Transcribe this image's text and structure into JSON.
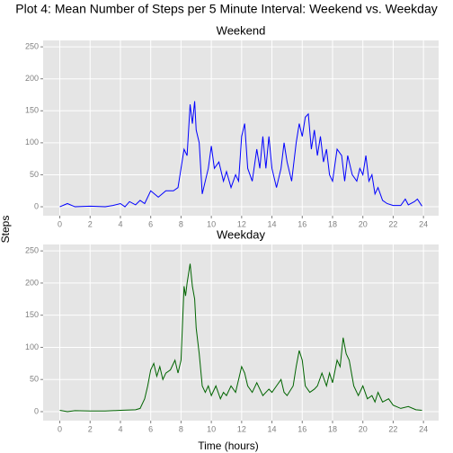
{
  "chart_data": {
    "type": "line",
    "title": "Plot 4: Mean Number of Steps per 5 Minute Interval: Weekend vs. Weekday",
    "x_label": "Time (hours)",
    "y_label": "Steps",
    "xlim": [
      -1.1,
      25.0
    ],
    "ylim": [
      -14,
      260
    ],
    "xticks": [
      0,
      2,
      4,
      6,
      8,
      10,
      12,
      14,
      16,
      18,
      20,
      22,
      24
    ],
    "yticks": [
      0,
      50,
      100,
      150,
      200,
      250
    ],
    "grid": true,
    "panels": [
      {
        "title": "Weekend",
        "series": [
          {
            "color": "#0000ff",
            "x": [
              0,
              0.5,
              1,
              2,
              3,
              3.5,
              4,
              4.3,
              4.6,
              5,
              5.3,
              5.6,
              6,
              6.5,
              7,
              7.5,
              7.8,
              8,
              8.2,
              8.4,
              8.6,
              8.75,
              8.9,
              9.0,
              9.2,
              9.4,
              9.6,
              9.8,
              10,
              10.2,
              10.5,
              10.8,
              11,
              11.3,
              11.6,
              11.8,
              12,
              12.2,
              12.4,
              12.7,
              13,
              13.2,
              13.4,
              13.6,
              13.8,
              14,
              14.3,
              14.6,
              14.8,
              15,
              15.3,
              15.6,
              15.8,
              16,
              16.2,
              16.4,
              16.6,
              16.8,
              17,
              17.2,
              17.4,
              17.6,
              17.8,
              18,
              18.3,
              18.6,
              18.8,
              19,
              19.3,
              19.6,
              19.8,
              20,
              20.2,
              20.4,
              20.6,
              20.8,
              21,
              21.3,
              21.6,
              22,
              22.5,
              22.8,
              23,
              23.4,
              23.6,
              23.9
            ],
            "values": [
              0,
              5,
              0,
              1,
              0,
              2,
              5,
              0,
              8,
              3,
              10,
              5,
              25,
              15,
              25,
              25,
              30,
              60,
              90,
              80,
              160,
              130,
              165,
              120,
              100,
              20,
              40,
              60,
              95,
              60,
              70,
              40,
              55,
              30,
              50,
              40,
              110,
              130,
              60,
              40,
              90,
              60,
              110,
              60,
              110,
              60,
              30,
              60,
              100,
              70,
              40,
              100,
              130,
              110,
              140,
              145,
              90,
              120,
              80,
              110,
              70,
              90,
              50,
              40,
              90,
              80,
              40,
              80,
              50,
              40,
              60,
              50,
              80,
              40,
              50,
              20,
              30,
              10,
              5,
              2,
              2,
              12,
              3,
              8,
              12,
              1
            ]
          }
        ]
      },
      {
        "title": "Weekday",
        "series": [
          {
            "color": "#006400",
            "x": [
              0,
              0.5,
              1,
              2,
              3,
              4,
              5,
              5.3,
              5.6,
              5.8,
              6,
              6.2,
              6.4,
              6.6,
              6.8,
              7,
              7.3,
              7.6,
              7.8,
              8,
              8.2,
              8.3,
              8.4,
              8.6,
              8.75,
              8.9,
              9.0,
              9.2,
              9.4,
              9.6,
              9.8,
              10,
              10.3,
              10.6,
              10.8,
              11,
              11.3,
              11.6,
              11.8,
              12,
              12.2,
              12.4,
              12.7,
              13,
              13.4,
              13.8,
              14,
              14.3,
              14.6,
              14.8,
              15,
              15.4,
              15.6,
              15.8,
              16,
              16.2,
              16.5,
              16.8,
              17.0,
              17.3,
              17.6,
              17.8,
              18,
              18.3,
              18.5,
              18.7,
              18.9,
              19.1,
              19.4,
              19.7,
              20,
              20.3,
              20.6,
              20.8,
              21,
              21.3,
              21.7,
              22,
              22.5,
              23,
              23.5,
              23.9
            ],
            "values": [
              2,
              0,
              1.5,
              1,
              1,
              2,
              3,
              5,
              20,
              40,
              65,
              75,
              55,
              70,
              50,
              60,
              65,
              80,
              60,
              80,
              195,
              180,
              200,
              230,
              195,
              175,
              130,
              90,
              40,
              30,
              40,
              25,
              40,
              20,
              30,
              25,
              40,
              30,
              50,
              70,
              60,
              40,
              30,
              45,
              25,
              35,
              30,
              40,
              50,
              30,
              25,
              40,
              70,
              95,
              80,
              40,
              30,
              35,
              40,
              60,
              40,
              60,
              45,
              80,
              70,
              115,
              90,
              80,
              40,
              25,
              40,
              20,
              25,
              15,
              30,
              15,
              20,
              10,
              5,
              8,
              3,
              2
            ]
          }
        ]
      }
    ]
  }
}
